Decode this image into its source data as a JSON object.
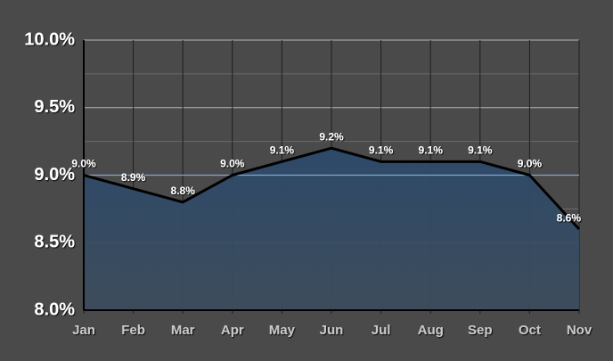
{
  "chart_data": {
    "type": "area",
    "categories": [
      "Jan",
      "Feb",
      "Mar",
      "Apr",
      "May",
      "Jun",
      "Jul",
      "Aug",
      "Sep",
      "Oct",
      "Nov"
    ],
    "values": [
      9.0,
      8.9,
      8.8,
      9.0,
      9.1,
      9.2,
      9.1,
      9.1,
      9.1,
      9.0,
      8.6
    ],
    "value_labels": [
      "9.0%",
      "8.9%",
      "8.8%",
      "9.0%",
      "9.1%",
      "9.2%",
      "9.1%",
      "9.1%",
      "9.1%",
      "9.0%",
      "8.6%"
    ],
    "color": "#2f4d6e",
    "line_color": "#000000",
    "ylim": [
      8.0,
      10.0
    ],
    "yticks": [
      {
        "value": 8.0,
        "label": "8.0%"
      },
      {
        "value": 8.5,
        "label": "8.5%"
      },
      {
        "value": 9.0,
        "label": "9.0%"
      },
      {
        "value": 9.5,
        "label": "9.5%"
      },
      {
        "value": 10.0,
        "label": "10.0%"
      }
    ],
    "minor_yticks": [
      8.25,
      8.75,
      9.25,
      9.75
    ],
    "reference_line": 9.0,
    "grid": true
  }
}
